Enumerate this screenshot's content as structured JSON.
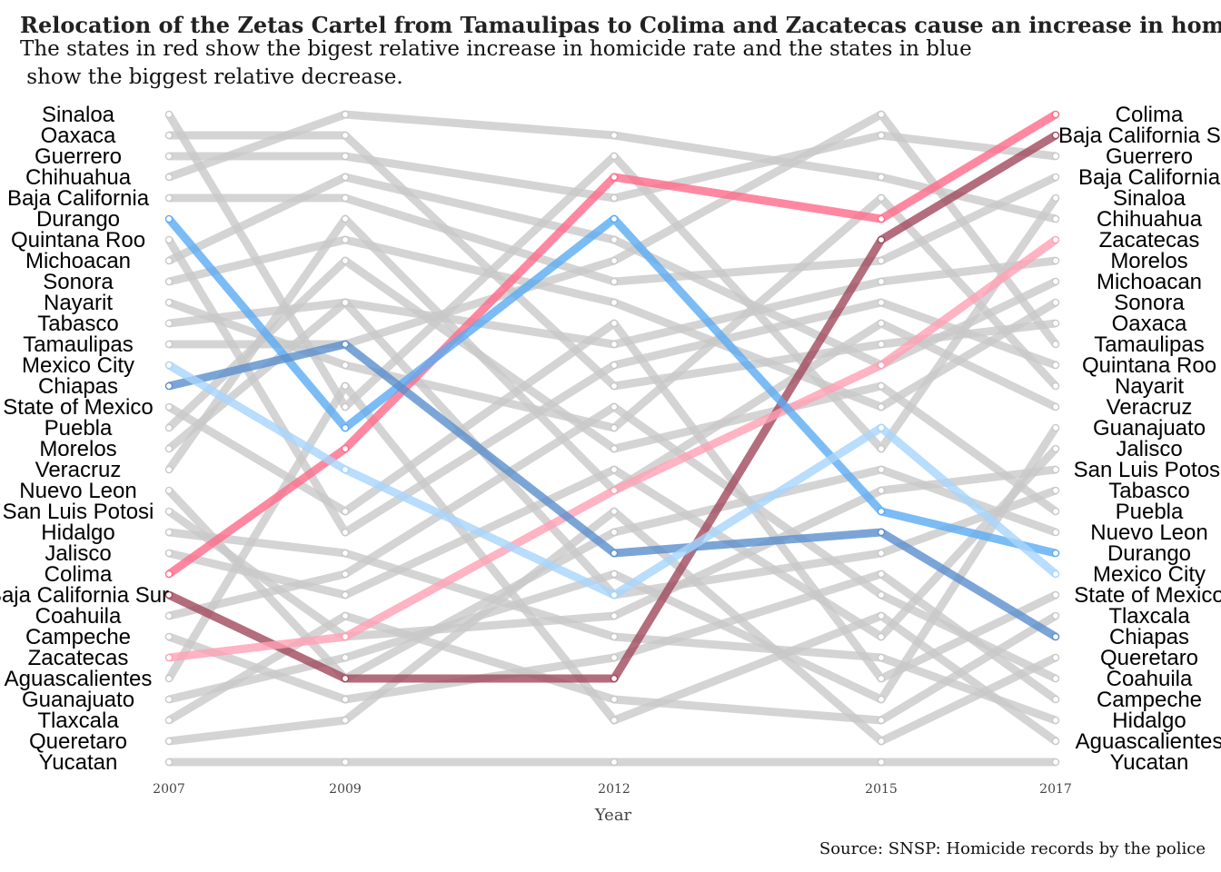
{
  "chart_data": {
    "type": "line",
    "title": "Relocation of the Zetas Cartel from Tamaulipas to Colima and Zacatecas cause an increase in homicide",
    "subtitle": [
      "The states in red show the bigest relative increase in homicide rate and the  states in blue",
      " show the biggest relative decrease."
    ],
    "xlabel": "Year",
    "ylabel": "",
    "source": "Source: SNSP: Homicide records by the police",
    "years": [
      "2007",
      "2009",
      "2012",
      "2015",
      "2017"
    ],
    "y_reversed": true,
    "rank_range": [
      1,
      32
    ],
    "left_labels": [
      "Sinaloa",
      "Oaxaca",
      "Guerrero",
      "Chihuahua",
      "Baja California",
      "Durango",
      "Quintana Roo",
      "Michoacan",
      "Sonora",
      "Nayarit",
      "Tabasco",
      "Tamaulipas",
      "Mexico City",
      "Chiapas",
      "State of Mexico",
      "Puebla",
      "Morelos",
      "Veracruz",
      "Nuevo Leon",
      "San Luis Potosi",
      "Hidalgo",
      "Jalisco",
      "Colima",
      "Baja California Sur",
      "Coahuila",
      "Campeche",
      "Zacatecas",
      "Aguascalientes",
      "Guanajuato",
      "Tlaxcala",
      "Queretaro",
      "Yucatan"
    ],
    "right_labels": [
      "Colima",
      "Baja California Sur",
      "Guerrero",
      "Baja California",
      "Sinaloa",
      "Chihuahua",
      "Zacatecas",
      "Morelos",
      "Michoacan",
      "Sonora",
      "Oaxaca",
      "Tamaulipas",
      "Quintana Roo",
      "Nayarit",
      "Veracruz",
      "Guanajuato",
      "Jalisco",
      "San Luis Potosi",
      "Tabasco",
      "Puebla",
      "Nuevo Leon",
      "Durango",
      "Mexico City",
      "State of Mexico",
      "Tlaxcala",
      "Chiapas",
      "Queretaro",
      "Coahuila",
      "Campeche",
      "Hidalgo",
      "Aguascalientes",
      "Yucatan"
    ],
    "colors": {
      "background_line": "#c8c8c8",
      "Colima": "#ff6a8a",
      "Baja California Sur": "#a0495c",
      "Zacatecas": "#ffa0b4",
      "Durango": "#5aabf2",
      "Chiapas": "#5a8fcc",
      "Mexico City": "#a8d4fb"
    },
    "highlighted": [
      "Colima",
      "Baja California Sur",
      "Zacatecas",
      "Durango",
      "Chiapas",
      "Mexico City"
    ],
    "series": [
      {
        "name": "Sinaloa",
        "values": [
          1,
          15,
          3,
          17,
          5
        ]
      },
      {
        "name": "Oaxaca",
        "values": [
          2,
          2,
          14,
          12,
          11
        ]
      },
      {
        "name": "Guerrero",
        "values": [
          3,
          3,
          5,
          2,
          3
        ]
      },
      {
        "name": "Chihuahua",
        "values": [
          4,
          1,
          2,
          4,
          6
        ]
      },
      {
        "name": "Baja California",
        "values": [
          5,
          5,
          9,
          8,
          4
        ]
      },
      {
        "name": "Durango",
        "values": [
          6,
          16,
          6,
          20,
          22
        ]
      },
      {
        "name": "Quintana Roo",
        "values": [
          7,
          21,
          13,
          10,
          13
        ]
      },
      {
        "name": "Michoacan",
        "values": [
          8,
          4,
          7,
          13,
          9
        ]
      },
      {
        "name": "Sonora",
        "values": [
          9,
          7,
          10,
          15,
          10
        ]
      },
      {
        "name": "Nayarit",
        "values": [
          10,
          13,
          16,
          5,
          14
        ]
      },
      {
        "name": "Tabasco",
        "values": [
          11,
          10,
          24,
          22,
          19
        ]
      },
      {
        "name": "Tamaulipas",
        "values": [
          12,
          12,
          8,
          1,
          12
        ]
      },
      {
        "name": "Mexico City",
        "values": [
          13,
          18,
          24,
          16,
          23
        ]
      },
      {
        "name": "Chiapas",
        "values": [
          14,
          12,
          22,
          21,
          26
        ]
      },
      {
        "name": "State of Mexico",
        "values": [
          15,
          20,
          11,
          28,
          24
        ]
      },
      {
        "name": "Puebla",
        "values": [
          16,
          8,
          17,
          14,
          20
        ]
      },
      {
        "name": "Morelos",
        "values": [
          17,
          10,
          12,
          9,
          8
        ]
      },
      {
        "name": "Veracruz",
        "values": [
          18,
          6,
          19,
          11,
          15
        ]
      },
      {
        "name": "Nuevo Leon",
        "values": [
          19,
          28,
          21,
          18,
          21
        ]
      },
      {
        "name": "San Luis Potosi",
        "values": [
          20,
          26,
          25,
          19,
          18
        ]
      },
      {
        "name": "Hidalgo",
        "values": [
          21,
          22,
          26,
          27,
          30
        ]
      },
      {
        "name": "Jalisco",
        "values": [
          22,
          24,
          18,
          26,
          17
        ]
      },
      {
        "name": "Colima",
        "values": [
          23,
          17,
          4,
          6,
          1
        ]
      },
      {
        "name": "Baja California Sur",
        "values": [
          24,
          28,
          28,
          7,
          2
        ]
      },
      {
        "name": "Coahuila",
        "values": [
          25,
          23,
          15,
          24,
          28
        ]
      },
      {
        "name": "Campeche",
        "values": [
          26,
          29,
          27,
          23,
          29
        ]
      },
      {
        "name": "Zacatecas",
        "values": [
          27,
          26,
          19,
          13,
          7
        ]
      },
      {
        "name": "Aguascalientes",
        "values": [
          28,
          14,
          30,
          25,
          31
        ]
      },
      {
        "name": "Guanajuato",
        "values": [
          29,
          27,
          23,
          29,
          16
        ]
      },
      {
        "name": "Tlaxcala",
        "values": [
          30,
          25,
          29,
          30,
          25
        ]
      },
      {
        "name": "Queretaro",
        "values": [
          31,
          30,
          20,
          31,
          27
        ]
      },
      {
        "name": "Yucatan",
        "values": [
          32,
          32,
          32,
          32,
          32
        ]
      }
    ]
  }
}
